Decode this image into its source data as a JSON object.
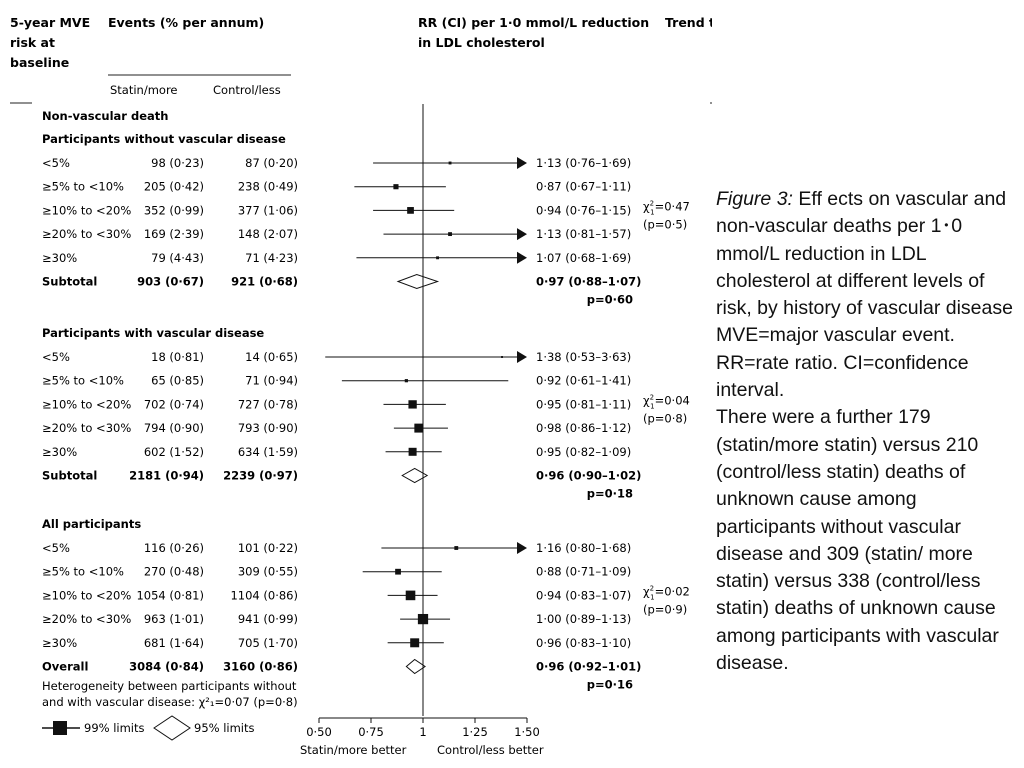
{
  "headers": {
    "risk_line1": "5-year MVE",
    "risk_line2": "risk at",
    "risk_line3": "baseline",
    "events": "Events (% per annum)",
    "rr_line1": "RR (CI) per 1·0 mmol/L reduction",
    "rr_line2": "in LDL cholesterol",
    "trend": "Trend test",
    "statin": "Statin/more",
    "control": "Control/less"
  },
  "axis": {
    "xmin": 0.5,
    "xmax": 1.5,
    "null_value": 1.0,
    "ticks": [
      "0·50",
      "0·75",
      "1",
      "1·25",
      "1·50"
    ],
    "tick_values": [
      0.5,
      0.75,
      1.0,
      1.25,
      1.5
    ],
    "left_label": "Statin/more better",
    "right_label": "Control/less better"
  },
  "legend": {
    "square": "99% limits",
    "diamond": "95% limits"
  },
  "heterogeneity": {
    "line1": "Heterogeneity between participants without",
    "line2": "and with vascular disease: χ²₁=0·07 (p=0·8)"
  },
  "chart_data": {
    "type": "forest",
    "title": "Non-vascular death",
    "groups": [
      {
        "heading": "Participants without vascular disease",
        "rows": [
          {
            "label": "<5%",
            "statin": "98 (0·23)",
            "control": "87 (0·20)",
            "rr_text": "1·13 (0·76–1·69)",
            "est": 1.13,
            "lo": 0.76,
            "hi": 1.69,
            "w": 0.9
          },
          {
            "label": "≥5% to <10%",
            "statin": "205 (0·42)",
            "control": "238 (0·49)",
            "rr_text": "0·87 (0·67–1·11)",
            "est": 0.87,
            "lo": 0.67,
            "hi": 1.11,
            "w": 1.6
          },
          {
            "label": "≥10% to <20%",
            "statin": "352 (0·99)",
            "control": "377 (1·06)",
            "rr_text": "0·94 (0·76–1·15)",
            "est": 0.94,
            "lo": 0.76,
            "hi": 1.15,
            "w": 2.1
          },
          {
            "label": "≥20% to <30%",
            "statin": "169 (2·39)",
            "control": "148 (2·07)",
            "rr_text": "1·13 (0·81–1·57)",
            "est": 1.13,
            "lo": 0.81,
            "hi": 1.57,
            "w": 1.2
          },
          {
            "label": "≥30%",
            "statin": "79 (4·43)",
            "control": "71 (4·23)",
            "rr_text": "1·07 (0·68–1·69)",
            "est": 1.07,
            "lo": 0.68,
            "hi": 1.69,
            "w": 0.9
          }
        ],
        "subtotal": {
          "label": "Subtotal",
          "statin": "903 (0·67)",
          "control": "921 (0·68)",
          "rr_text": "0·97 (0·88–1·07)",
          "p": "p=0·60",
          "est": 0.97,
          "lo": 0.88,
          "hi": 1.07
        },
        "trend": {
          "chi": "χ²₁=0·47",
          "p": "(p=0·5)"
        }
      },
      {
        "heading": "Participants with vascular disease",
        "rows": [
          {
            "label": "<5%",
            "statin": "18 (0·81)",
            "control": "14 (0·65)",
            "rr_text": "1·38 (0·53–3·63)",
            "est": 1.38,
            "lo": 0.53,
            "hi": 3.63,
            "w": 0.6
          },
          {
            "label": "≥5% to <10%",
            "statin": "65 (0·85)",
            "control": "71 (0·94)",
            "rr_text": "0·92 (0·61–1·41)",
            "est": 0.92,
            "lo": 0.61,
            "hi": 1.41,
            "w": 1.0
          },
          {
            "label": "≥10% to <20%",
            "statin": "702 (0·74)",
            "control": "727 (0·78)",
            "rr_text": "0·95 (0·81–1·11)",
            "est": 0.95,
            "lo": 0.81,
            "hi": 1.11,
            "w": 2.6
          },
          {
            "label": "≥20% to <30%",
            "statin": "794 (0·90)",
            "control": "793 (0·90)",
            "rr_text": "0·98 (0·86–1·12)",
            "est": 0.98,
            "lo": 0.86,
            "hi": 1.12,
            "w": 2.8
          },
          {
            "label": "≥30%",
            "statin": "602 (1·52)",
            "control": "634 (1·59)",
            "rr_text": "0·95 (0·82–1·09)",
            "est": 0.95,
            "lo": 0.82,
            "hi": 1.09,
            "w": 2.5
          }
        ],
        "subtotal": {
          "label": "Subtotal",
          "statin": "2181 (0·94)",
          "control": "2239 (0·97)",
          "rr_text": "0·96 (0·90–1·02)",
          "p": "p=0·18",
          "est": 0.96,
          "lo": 0.9,
          "hi": 1.02
        },
        "trend": {
          "chi": "χ²₁=0·04",
          "p": "(p=0·8)"
        }
      },
      {
        "heading": "All participants",
        "rows": [
          {
            "label": "<5%",
            "statin": "116 (0·26)",
            "control": "101 (0·22)",
            "rr_text": "1·16 (0·80–1·68)",
            "est": 1.16,
            "lo": 0.8,
            "hi": 1.68,
            "w": 1.2
          },
          {
            "label": "≥5% to <10%",
            "statin": "270 (0·48)",
            "control": "309 (0·55)",
            "rr_text": "0·88 (0·71–1·09)",
            "est": 0.88,
            "lo": 0.71,
            "hi": 1.09,
            "w": 1.8
          },
          {
            "label": "≥10% to <20%",
            "statin": "1054 (0·81)",
            "control": "1104 (0·86)",
            "rr_text": "0·94 (0·83–1·07)",
            "est": 0.94,
            "lo": 0.83,
            "lo2": 0.83,
            "hi": 1.07,
            "w": 3.0
          },
          {
            "label": "≥20% to <30%",
            "statin": "963 (1·01)",
            "control": "941 (0·99)",
            "rr_text": "1·00 (0·89–1·13)",
            "est": 1.0,
            "lo": 0.89,
            "hi": 1.13,
            "w": 3.2
          },
          {
            "label": "≥30%",
            "statin": "681 (1·64)",
            "control": "705 (1·70)",
            "rr_text": "0·96 (0·83–1·10)",
            "est": 0.96,
            "lo": 0.83,
            "hi": 1.1,
            "w": 2.8
          }
        ],
        "subtotal": {
          "label": "Overall",
          "statin": "3084 (0·84)",
          "control": "3160 (0·86)",
          "rr_text": "0·96 (0·92–1·01)",
          "p": "p=0·16",
          "est": 0.96,
          "lo": 0.92,
          "hi": 1.01
        },
        "trend": {
          "chi": "χ²₁=0·02",
          "p": "(p=0·9)"
        }
      }
    ]
  },
  "caption": {
    "label": "Figure 3:",
    "title": " Eff ects on vascular and non-vascular deaths per 1･0 mmol/L reduction in LDL cholesterol at different levels of risk, by history of vascular disease",
    "abbrev": "MVE=major vascular event. RR=rate ratio. CI=confidence interval.",
    "note": "There were a further 179 (statin/more statin) versus 210 (control/less statin) deaths of unknown cause among participants without vascular disease and 309 (statin/ more statin) versus 338 (control/less statin) deaths of unknown cause among participants with vascular disease."
  }
}
